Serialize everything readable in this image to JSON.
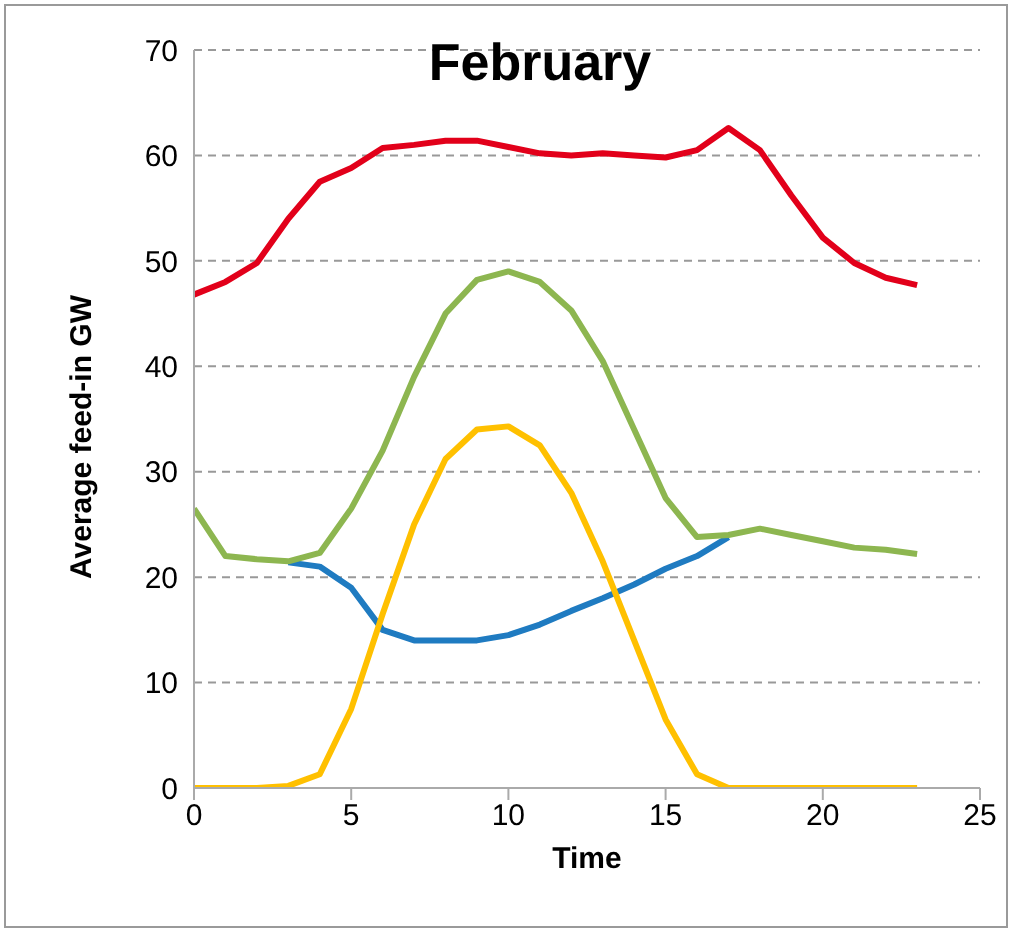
{
  "chart_data": {
    "type": "line",
    "title": "February",
    "xlabel": "Time",
    "ylabel": "Average feed-in GW",
    "x": [
      0,
      1,
      2,
      3,
      4,
      5,
      6,
      7,
      8,
      9,
      10,
      11,
      12,
      13,
      14,
      15,
      16,
      17,
      18,
      19,
      20,
      21,
      22,
      23
    ],
    "series": [
      {
        "color": "#e2001a",
        "values": [
          46.8,
          48,
          49.8,
          54,
          57.5,
          58.8,
          60.7,
          61,
          61.4,
          61.4,
          60.8,
          60.2,
          60,
          60.2,
          60,
          59.8,
          60.5,
          62.6,
          60.5,
          56.2,
          52.2,
          49.8,
          48.4,
          47.7
        ]
      },
      {
        "color": "#1f7bc1",
        "values": [
          null,
          null,
          null,
          21.4,
          21,
          19,
          15,
          14,
          14,
          14,
          14.5,
          15.5,
          16.8,
          18,
          19.3,
          20.8,
          22,
          23.8,
          null,
          null,
          null,
          null,
          null,
          null
        ]
      },
      {
        "color": "#8db650",
        "values": [
          26.5,
          22,
          21.7,
          21.5,
          22.3,
          26.5,
          32,
          39,
          45,
          48.2,
          49,
          48,
          45.3,
          40.5,
          34,
          27.5,
          23.8,
          24,
          24.6,
          24,
          23.4,
          22.8,
          22.6,
          22.2
        ]
      },
      {
        "color": "#ffc000",
        "values": [
          0,
          0,
          0,
          0.2,
          1.3,
          7.5,
          16.5,
          25,
          31.2,
          34,
          34.3,
          32.5,
          28,
          21.5,
          14,
          6.5,
          1.3,
          0,
          0,
          0,
          0,
          0,
          0,
          0
        ]
      }
    ],
    "xlim": [
      0,
      25
    ],
    "xticks": [
      0,
      5,
      10,
      15,
      20,
      25
    ],
    "ylim": [
      0,
      70
    ],
    "yticks": [
      0,
      10,
      20,
      30,
      40,
      50,
      60,
      70
    ],
    "grid": "y",
    "legend": false,
    "marker": "none",
    "line_style": "solid"
  }
}
